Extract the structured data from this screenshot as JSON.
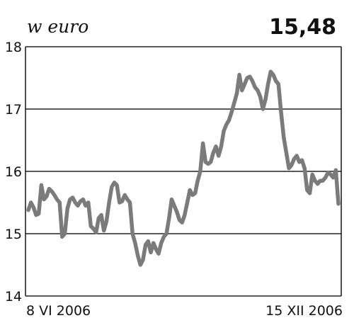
{
  "chart_data": {
    "type": "line",
    "unit_label": "w euro",
    "last_value_label": "15,48",
    "ylim": [
      14,
      18
    ],
    "yticks": [
      "14",
      "15",
      "16",
      "17",
      "18"
    ],
    "x_start_label": "8 VI 2006",
    "x_end_label": "15 XII 2006",
    "grid": true,
    "series": [
      {
        "color": "#7b7b7b",
        "values": [
          15.38,
          15.5,
          15.42,
          15.3,
          15.32,
          15.78,
          15.55,
          15.6,
          15.72,
          15.68,
          15.62,
          15.55,
          15.5,
          14.95,
          15.0,
          15.4,
          15.55,
          15.58,
          15.5,
          15.45,
          15.52,
          15.55,
          15.45,
          15.5,
          15.12,
          15.08,
          15.02,
          15.25,
          15.3,
          15.05,
          15.2,
          15.5,
          15.75,
          15.82,
          15.78,
          15.5,
          15.52,
          15.62,
          15.55,
          15.5,
          15.0,
          14.85,
          14.65,
          14.5,
          14.58,
          14.82,
          14.88,
          14.7,
          14.85,
          14.75,
          14.68,
          14.85,
          14.95,
          15.0,
          15.25,
          15.55,
          15.45,
          15.35,
          15.22,
          15.18,
          15.3,
          15.5,
          15.7,
          15.62,
          15.65,
          15.85,
          16.0,
          16.45,
          16.15,
          16.12,
          16.15,
          16.3,
          16.4,
          16.25,
          16.4,
          16.65,
          16.75,
          16.82,
          16.95,
          17.1,
          17.25,
          17.55,
          17.3,
          17.4,
          17.5,
          17.52,
          17.45,
          17.35,
          17.3,
          17.2,
          17.0,
          17.15,
          17.4,
          17.6,
          17.55,
          17.45,
          17.4,
          16.95,
          16.55,
          16.3,
          16.05,
          16.1,
          16.2,
          16.25,
          16.15,
          16.18,
          16.05,
          15.7,
          15.65,
          15.95,
          15.85,
          15.8,
          15.85,
          15.85,
          15.9,
          15.98,
          15.95,
          15.9,
          16.02,
          15.48
        ]
      }
    ]
  }
}
